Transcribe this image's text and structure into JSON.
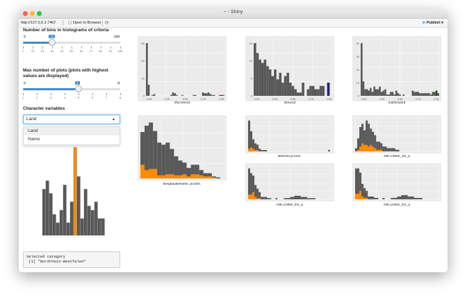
{
  "window": {
    "title": "~ - Shiny"
  },
  "toolbar": {
    "url": "http://127.0.0.1:7467",
    "open_label": "Open in Browser",
    "publish_label": "Publish"
  },
  "colors": {
    "bar": "#595959",
    "highlight": "#ff8c00",
    "accent": "#428bca",
    "navy": "#1a237e",
    "darkgreen": "#1b4d1b",
    "red": "#8b0000"
  },
  "controls": {
    "bins_label": "Number of bins in histograms of criteria",
    "bins": {
      "min": "1",
      "max": "100",
      "value": "31",
      "value_num": 31,
      "min_num": 1,
      "max_num": 100,
      "ticks": [
        "1",
        "11",
        "21",
        "31",
        "41",
        "51",
        "61",
        "71",
        "81",
        "91",
        "100"
      ]
    },
    "plots_label_line1": "Max number of plots (plots with highest",
    "plots_label_line2": "values are displayed)",
    "plots": {
      "min": "1",
      "max": "8",
      "value": "5",
      "value_num": 5,
      "min_num": 1,
      "max_num": 8,
      "ticks": [
        "1",
        "2",
        "3",
        "4",
        "5",
        "6",
        "7",
        "8"
      ]
    },
    "char_label": "Character variables",
    "select_value": "Land",
    "options": [
      "Land",
      "Name"
    ]
  },
  "output": {
    "line1": "Selected category",
    "line2": " [1] \"Nordrhein-Westfalen\""
  },
  "chart_data": [
    {
      "type": "bar",
      "id": "sidebar_bar",
      "values": [
        11,
        13,
        10,
        5,
        3,
        6,
        12,
        3,
        8,
        21,
        14,
        4,
        11,
        7,
        6,
        8,
        4,
        4
      ],
      "highlight_index": 9,
      "highlight_value": 21
    },
    {
      "type": "bar",
      "id": "discrete1d",
      "xlabel": "discrete1d",
      "y_ticks": [
        "0",
        "20",
        "40",
        "60"
      ],
      "x_ticks": [
        "0.00",
        "0.25",
        "0.50",
        "0.75",
        "1.00"
      ],
      "values": [
        62,
        13,
        0,
        1,
        2,
        0,
        0,
        0,
        0,
        0,
        0,
        0,
        0,
        1,
        4,
        3,
        1,
        0,
        0,
        1,
        0,
        0,
        0,
        0,
        0,
        1,
        1,
        0,
        0,
        0,
        4,
        3,
        3,
        4,
        2,
        1,
        1,
        0,
        0,
        1,
        1,
        1
      ],
      "special": {
        "index": 40,
        "color": "red"
      }
    },
    {
      "type": "bar",
      "id": "skew1d",
      "xlabel": "skew1d",
      "y_ticks": [
        "0",
        "5",
        "10",
        "15"
      ],
      "x_ticks": [
        "0.00",
        "0.25",
        "0.50",
        "0.75",
        "1.00"
      ],
      "values": [
        16,
        13,
        11,
        10,
        11,
        9,
        8,
        6,
        8,
        5,
        7,
        4,
        6,
        7,
        4,
        3,
        2,
        1,
        1,
        4,
        0,
        2,
        3,
        3,
        2,
        2,
        3,
        3,
        0,
        4,
        0
      ],
      "special": {
        "index": 29,
        "color": "navy"
      }
    },
    {
      "type": "bar",
      "id": "multimod1d",
      "xlabel": "multimod1d",
      "y_ticks": [
        "0",
        "10",
        "20",
        "30",
        "40"
      ],
      "x_ticks": [
        "0.00",
        "0.25",
        "0.50",
        "0.75",
        "1.00"
      ],
      "values": [
        40,
        11,
        5,
        5,
        4,
        6,
        3,
        7,
        5,
        5,
        7,
        3,
        4,
        5,
        1,
        1,
        3,
        3,
        1,
        4,
        2,
        1,
        0,
        1,
        0,
        0,
        0,
        0,
        4,
        3,
        3,
        3,
        2,
        2,
        2,
        2,
        2,
        2,
        1,
        3,
        3,
        4,
        2
      ],
      "special": {
        "index": 41,
        "color": "darkgreen"
      }
    },
    {
      "type": "stacked_bar",
      "id": "bergbau",
      "xlabel": "BergbauBetriebe..je1000.",
      "values": [
        [
          31,
          13
        ],
        [
          42,
          8
        ],
        [
          44,
          9
        ],
        [
          36,
          9
        ],
        [
          31,
          3
        ],
        [
          29,
          3
        ],
        [
          30,
          4
        ],
        [
          24,
          4
        ],
        [
          18,
          3
        ],
        [
          14,
          3
        ],
        [
          11,
          4
        ],
        [
          8,
          2
        ],
        [
          9,
          4
        ],
        [
          9,
          4
        ],
        [
          5,
          3
        ],
        [
          3,
          2
        ],
        [
          3,
          2
        ],
        [
          1,
          1
        ],
        [
          1,
          0
        ],
        [
          0,
          0
        ]
      ]
    },
    {
      "type": "stacked_bar",
      "id": "bdichte",
      "xlabel": "BDichte.je.km2.",
      "values": [
        [
          21,
          2
        ],
        [
          12,
          3
        ],
        [
          7,
          2
        ],
        [
          5,
          1
        ],
        [
          4,
          1
        ],
        [
          2,
          0
        ],
        [
          1,
          0
        ],
        [
          1,
          0
        ],
        [
          1,
          0
        ],
        [
          0,
          0
        ],
        [
          0,
          0
        ],
        [
          0,
          0
        ],
        [
          0,
          0
        ],
        [
          0,
          0
        ],
        [
          0,
          0
        ],
        [
          0,
          0
        ],
        [
          0,
          0
        ],
        [
          0,
          0
        ],
        [
          0,
          0
        ],
        [
          0,
          0
        ],
        [
          0,
          0
        ],
        [
          0,
          0
        ],
        [
          0,
          0
        ],
        [
          0,
          0
        ],
        [
          0,
          0
        ],
        [
          0,
          0
        ],
        [
          0,
          0
        ],
        [
          0,
          0
        ],
        [
          0,
          0
        ],
        [
          0,
          0
        ],
        [
          0,
          0
        ],
        [
          0,
          0
        ],
        [
          0,
          0
        ],
        [
          0,
          0
        ],
        [
          0,
          0
        ],
        [
          0,
          0
        ],
        [
          0,
          0
        ],
        [
          0,
          0
        ],
        [
          1,
          0
        ],
        [
          0,
          0
        ]
      ]
    },
    {
      "type": "stacked_bar",
      "id": "linke_zs",
      "xlabel": "DIE.LINKE_ZS_q",
      "values": [
        [
          2,
          0
        ],
        [
          7,
          1
        ],
        [
          12,
          3
        ],
        [
          12,
          5
        ],
        [
          9,
          4
        ],
        [
          15,
          4
        ],
        [
          14,
          3
        ],
        [
          10,
          4
        ],
        [
          9,
          3
        ],
        [
          8,
          2
        ],
        [
          5,
          1
        ],
        [
          5,
          1
        ],
        [
          4,
          1
        ],
        [
          3,
          0
        ],
        [
          3,
          0
        ],
        [
          2,
          0
        ],
        [
          2,
          0
        ],
        [
          2,
          0
        ],
        [
          2,
          0
        ],
        [
          1,
          0
        ],
        [
          1,
          0
        ],
        [
          0,
          0
        ],
        [
          0,
          0
        ],
        [
          0,
          0
        ],
        [
          0,
          0
        ],
        [
          0,
          0
        ],
        [
          0,
          0
        ],
        [
          0,
          0
        ],
        [
          0,
          0
        ],
        [
          0,
          0
        ],
        [
          0,
          0
        ],
        [
          0,
          0
        ],
        [
          0,
          0
        ],
        [
          0,
          0
        ],
        [
          0,
          0
        ],
        [
          0,
          0
        ],
        [
          0,
          0
        ],
        [
          0,
          0
        ],
        [
          0,
          0
        ],
        [
          0,
          0
        ]
      ]
    },
    {
      "type": "stacked_bar",
      "id": "linke_es_1",
      "xlabel": "DIE.LINKE_ES_q",
      "values": [
        [
          22,
          4
        ],
        [
          18,
          4
        ],
        [
          14,
          6
        ],
        [
          10,
          2
        ],
        [
          8,
          1
        ],
        [
          5,
          1
        ],
        [
          2,
          0
        ],
        [
          2,
          0
        ],
        [
          2,
          0
        ],
        [
          1,
          0
        ],
        [
          1,
          0
        ],
        [
          0,
          0
        ],
        [
          0,
          0
        ],
        [
          1,
          0
        ],
        [
          0,
          0
        ],
        [
          0,
          0
        ],
        [
          0,
          0
        ],
        [
          1,
          0
        ],
        [
          1,
          0
        ],
        [
          1,
          0
        ],
        [
          2,
          0
        ],
        [
          2,
          0
        ],
        [
          3,
          0
        ],
        [
          3,
          0
        ],
        [
          3,
          0
        ],
        [
          2,
          0
        ],
        [
          2,
          0
        ],
        [
          2,
          0
        ],
        [
          1,
          0
        ],
        [
          1,
          0
        ],
        [
          1,
          0
        ],
        [
          1,
          0
        ],
        [
          0,
          0
        ],
        [
          0,
          0
        ],
        [
          0,
          0
        ],
        [
          0,
          0
        ],
        [
          0,
          0
        ],
        [
          0,
          0
        ],
        [
          0,
          0
        ],
        [
          0,
          0
        ]
      ]
    },
    {
      "type": "stacked_bar",
      "id": "linke_es_2",
      "xlabel": "DIE.LINKE_ES_q",
      "values": [
        [
          18,
          4
        ],
        [
          18,
          4
        ],
        [
          13,
          6
        ],
        [
          9,
          2
        ],
        [
          7,
          1
        ],
        [
          5,
          1
        ],
        [
          2,
          0
        ],
        [
          2,
          0
        ],
        [
          2,
          0
        ],
        [
          1,
          0
        ],
        [
          1,
          0
        ],
        [
          0,
          0
        ],
        [
          0,
          0
        ],
        [
          1,
          0
        ],
        [
          0,
          0
        ],
        [
          0,
          0
        ],
        [
          0,
          0
        ],
        [
          1,
          0
        ],
        [
          1,
          0
        ],
        [
          1,
          0
        ],
        [
          2,
          0
        ],
        [
          2,
          0
        ],
        [
          3,
          0
        ],
        [
          3,
          0
        ],
        [
          3,
          0
        ],
        [
          2,
          0
        ],
        [
          2,
          0
        ],
        [
          2,
          0
        ],
        [
          1,
          0
        ],
        [
          1,
          0
        ],
        [
          1,
          0
        ],
        [
          1,
          0
        ],
        [
          0,
          0
        ],
        [
          0,
          0
        ],
        [
          0,
          0
        ],
        [
          0,
          0
        ],
        [
          0,
          0
        ],
        [
          0,
          0
        ],
        [
          0,
          0
        ],
        [
          0,
          0
        ]
      ]
    }
  ]
}
